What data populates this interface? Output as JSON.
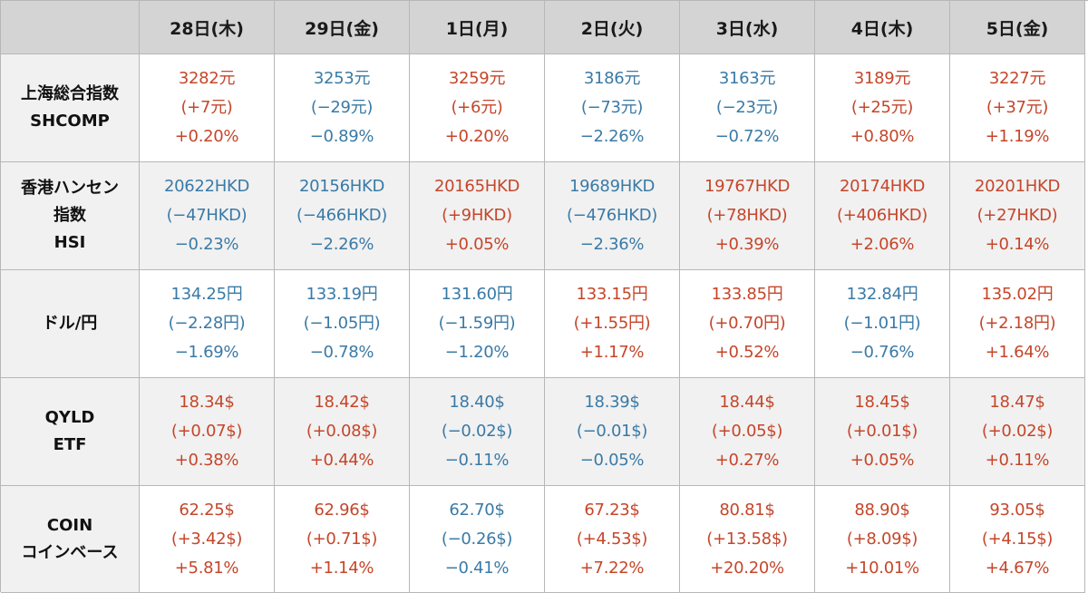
{
  "colors": {
    "up": "#c5462a",
    "down": "#3a7aa6"
  },
  "headers": [
    "28日(木)",
    "29日(金)",
    "1日(月)",
    "2日(火)",
    "3日(水)",
    "4日(木)",
    "5日(金)"
  ],
  "rows": [
    {
      "label": [
        "上海総合指数",
        "SHCOMP"
      ],
      "cells": [
        {
          "dir": "up",
          "lines": [
            "3282元",
            "(+7元)",
            "+0.20%"
          ]
        },
        {
          "dir": "down",
          "lines": [
            "3253元",
            "(−29元)",
            "−0.89%"
          ]
        },
        {
          "dir": "up",
          "lines": [
            "3259元",
            "(+6元)",
            "+0.20%"
          ]
        },
        {
          "dir": "down",
          "lines": [
            "3186元",
            "(−73元)",
            "−2.26%"
          ]
        },
        {
          "dir": "down",
          "lines": [
            "3163元",
            "(−23元)",
            "−0.72%"
          ]
        },
        {
          "dir": "up",
          "lines": [
            "3189元",
            "(+25元)",
            "+0.80%"
          ]
        },
        {
          "dir": "up",
          "lines": [
            "3227元",
            "(+37元)",
            "+1.19%"
          ]
        }
      ]
    },
    {
      "label": [
        "香港ハンセン",
        "指数",
        "HSI"
      ],
      "cells": [
        {
          "dir": "down",
          "lines": [
            "20622HKD",
            "(−47HKD)",
            "−0.23%"
          ]
        },
        {
          "dir": "down",
          "lines": [
            "20156HKD",
            "(−466HKD)",
            "−2.26%"
          ]
        },
        {
          "dir": "up",
          "lines": [
            "20165HKD",
            "(+9HKD)",
            "+0.05%"
          ]
        },
        {
          "dir": "down",
          "lines": [
            "19689HKD",
            "(−476HKD)",
            "−2.36%"
          ]
        },
        {
          "dir": "up",
          "lines": [
            "19767HKD",
            "(+78HKD)",
            "+0.39%"
          ]
        },
        {
          "dir": "up",
          "lines": [
            "20174HKD",
            "(+406HKD)",
            "+2.06%"
          ]
        },
        {
          "dir": "up",
          "lines": [
            "20201HKD",
            "(+27HKD)",
            "+0.14%"
          ]
        }
      ]
    },
    {
      "label": [
        "ドル/円"
      ],
      "cells": [
        {
          "dir": "down",
          "lines": [
            "134.25円",
            "(−2.28円)",
            "−1.69%"
          ]
        },
        {
          "dir": "down",
          "lines": [
            "133.19円",
            "(−1.05円)",
            "−0.78%"
          ]
        },
        {
          "dir": "down",
          "lines": [
            "131.60円",
            "(−1.59円)",
            "−1.20%"
          ]
        },
        {
          "dir": "up",
          "lines": [
            "133.15円",
            "(+1.55円)",
            "+1.17%"
          ]
        },
        {
          "dir": "up",
          "lines": [
            "133.85円",
            "(+0.70円)",
            "+0.52%"
          ]
        },
        {
          "dir": "down",
          "lines": [
            "132.84円",
            "(−1.01円)",
            "−0.76%"
          ]
        },
        {
          "dir": "up",
          "lines": [
            "135.02円",
            "(+2.18円)",
            "+1.64%"
          ]
        }
      ]
    },
    {
      "label": [
        "QYLD",
        "ETF"
      ],
      "cells": [
        {
          "dir": "up",
          "lines": [
            "18.34$",
            "(+0.07$)",
            "+0.38%"
          ]
        },
        {
          "dir": "up",
          "lines": [
            "18.42$",
            "(+0.08$)",
            "+0.44%"
          ]
        },
        {
          "dir": "down",
          "lines": [
            "18.40$",
            "(−0.02$)",
            "−0.11%"
          ]
        },
        {
          "dir": "down",
          "lines": [
            "18.39$",
            "(−0.01$)",
            "−0.05%"
          ]
        },
        {
          "dir": "up",
          "lines": [
            "18.44$",
            "(+0.05$)",
            "+0.27%"
          ]
        },
        {
          "dir": "up",
          "lines": [
            "18.45$",
            "(+0.01$)",
            "+0.05%"
          ]
        },
        {
          "dir": "up",
          "lines": [
            "18.47$",
            "(+0.02$)",
            "+0.11%"
          ]
        }
      ]
    },
    {
      "label": [
        "COIN",
        "コインベース"
      ],
      "cells": [
        {
          "dir": "up",
          "lines": [
            "62.25$",
            "(+3.42$)",
            "+5.81%"
          ]
        },
        {
          "dir": "up",
          "lines": [
            "62.96$",
            "(+0.71$)",
            "+1.14%"
          ]
        },
        {
          "dir": "down",
          "lines": [
            "62.70$",
            "(−0.26$)",
            "−0.41%"
          ]
        },
        {
          "dir": "up",
          "lines": [
            "67.23$",
            "(+4.53$)",
            "+7.22%"
          ]
        },
        {
          "dir": "up",
          "lines": [
            "80.81$",
            "(+13.58$)",
            "+20.20%"
          ]
        },
        {
          "dir": "up",
          "lines": [
            "88.90$",
            "(+8.09$)",
            "+10.01%"
          ]
        },
        {
          "dir": "up",
          "lines": [
            "93.05$",
            "(+4.15$)",
            "+4.67%"
          ]
        }
      ]
    }
  ]
}
